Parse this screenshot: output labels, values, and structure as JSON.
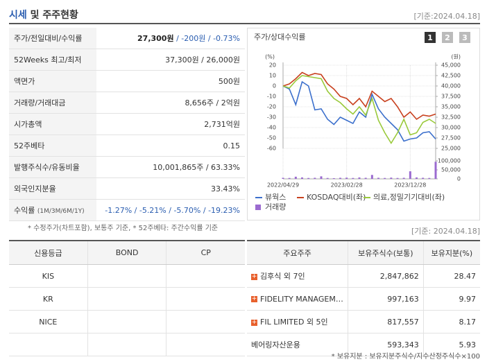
{
  "header": {
    "title_highlight": "시세",
    "title_rest": "및 주주현황",
    "basis": "[기준:2024.04.18]"
  },
  "info_table": {
    "rows": [
      {
        "label": "주가/전일대비/수익률",
        "value": "27,300원",
        "value_rest": " / -200원 / -0.73%"
      },
      {
        "label": "52Weeks 최고/최저",
        "value": "37,300원 / 26,000원"
      },
      {
        "label": "액면가",
        "value": "500원"
      },
      {
        "label": "거래량/거래대금",
        "value": "8,656주 / 2억원"
      },
      {
        "label": "시가총액",
        "value": "2,731억원"
      },
      {
        "label": "52주베타",
        "value": "0.15"
      },
      {
        "label": "발행주식수/유동비율",
        "value": "10,001,865주 / 63.33%"
      },
      {
        "label": "외국인지분율",
        "value": "33.43%"
      },
      {
        "label": "수익률",
        "label_sub": "(1M/3M/6M/1Y)",
        "value": "-1.27% / -5.21% / -5.70% / -19.23%"
      }
    ]
  },
  "info_note": "* 수정주가(차트포함), 보통주 기준, * 52주베타: 주간수익률 기준",
  "chart_tabs": [
    "1",
    "2",
    "3"
  ],
  "chart_data": [
    {
      "type": "line",
      "title": "주가/상대수익률",
      "ylabel": "(%)",
      "y2label": "(원)",
      "categories": [
        "2022/04/29",
        null,
        null,
        null,
        null,
        null,
        null,
        null,
        null,
        null,
        "2023/02/28",
        null,
        null,
        null,
        null,
        null,
        null,
        null,
        null,
        null,
        "2023/12/28",
        null,
        null,
        null,
        null
      ],
      "ylim": [
        -60,
        20
      ],
      "yticks": [
        20,
        10,
        0,
        -10,
        -20,
        -30,
        -40,
        -50,
        -60
      ],
      "y2lim": [
        25000,
        45000
      ],
      "y2ticks": [
        {
          "value": 45000,
          "label": "45,000"
        },
        {
          "value": 42500,
          "label": "42,500"
        },
        {
          "value": 40000,
          "label": "40,000"
        },
        {
          "value": 37500,
          "label": "37,500"
        },
        {
          "value": 35000,
          "label": "35,000"
        },
        {
          "value": 32500,
          "label": "32,500"
        },
        {
          "value": 30000,
          "label": "30,000"
        },
        {
          "value": 27500,
          "label": "27,500"
        },
        {
          "value": 25000,
          "label": "25,000"
        }
      ],
      "grid": true,
      "xgrid": true,
      "series": [
        {
          "name": "뷰웍스",
          "color": "#3b6fcc",
          "values": [
            0,
            -3,
            -18,
            4,
            0,
            -23,
            -22,
            -32,
            -37,
            -30,
            -33,
            -36,
            -25,
            -30,
            -8,
            -22,
            -30,
            -36,
            -42,
            -53,
            -51,
            -50,
            -45,
            -44,
            -51
          ]
        },
        {
          "name": "KOSDAQ대비(좌)",
          "color": "#c8401e",
          "values": [
            0,
            2,
            7,
            13,
            10,
            12,
            11,
            2,
            -3,
            -10,
            -12,
            -18,
            -12,
            -20,
            -5,
            -10,
            -15,
            -12,
            -20,
            -30,
            -25,
            -32,
            -28,
            -29,
            -27
          ]
        },
        {
          "name": "의료,정밀기기대비(좌)",
          "color": "#99c93a",
          "values": [
            0,
            -2,
            5,
            10,
            9,
            8,
            7,
            -5,
            -12,
            -16,
            -22,
            -27,
            -20,
            -28,
            -12,
            -33,
            -45,
            -55,
            -45,
            -32,
            -47,
            -45,
            -35,
            -32,
            -36
          ]
        }
      ]
    },
    {
      "type": "bar",
      "ylim": [
        0,
        100000
      ],
      "yticks": [
        {
          "value": 100000,
          "label": "100,000"
        },
        {
          "value": 50000,
          "label": "50,000"
        },
        0
      ],
      "series": [
        {
          "name": "거래량",
          "color": "#9b6bd0",
          "values": [
            6000,
            5000,
            12000,
            8000,
            5000,
            6000,
            14000,
            5000,
            4000,
            6000,
            7000,
            5000,
            8000,
            6000,
            22000,
            6000,
            5000,
            7000,
            5000,
            6000,
            42000,
            8000,
            6000,
            5000,
            95000
          ]
        }
      ]
    }
  ],
  "basis2": "[기준: 2024.04.18]",
  "credit_table": {
    "headers": [
      "신용등급",
      "BOND",
      "CP"
    ],
    "rows": [
      [
        "KIS",
        "",
        ""
      ],
      [
        "KR",
        "",
        ""
      ],
      [
        "NICE",
        "",
        ""
      ]
    ]
  },
  "holder_table": {
    "headers": [
      "주요주주",
      "보유주식수(보통)",
      "보유지분(%)"
    ],
    "rows": [
      [
        "김후식 외 7인",
        "2,847,862",
        "28.47"
      ],
      [
        "FIDELITY MANAGEM…",
        "997,163",
        "9.97"
      ],
      [
        "FIL LIMITED 외 5인",
        "817,557",
        "8.17"
      ],
      [
        "베어링자산운용",
        "593,343",
        "5.93"
      ]
    ]
  },
  "holder_note": "* 보유지분 : 보유지분주식수/지수산정주식수×100"
}
